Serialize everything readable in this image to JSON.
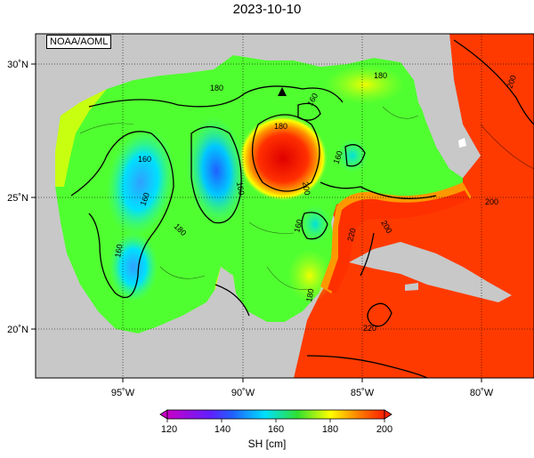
{
  "title": "2023-10-10",
  "agency": "NOAA/AOML",
  "colorbar": {
    "ticks": [
      "120",
      "140",
      "160",
      "180",
      "200"
    ],
    "unit_label": "SH [cm]",
    "range": [
      120,
      200
    ],
    "colors": [
      "#c800c8",
      "#3030ff",
      "#00ffff",
      "#30e030",
      "#ffff00",
      "#ff8000",
      "#ff2000"
    ]
  },
  "axes": {
    "x_ticks": [
      "95˚W",
      "90˚W",
      "85˚W",
      "80˚W"
    ],
    "y_ticks": [
      "30˚N",
      "25˚N",
      "20˚N"
    ],
    "lon_range": [
      -98,
      -78
    ],
    "lat_range": [
      18,
      31
    ]
  },
  "contour_labels": [
    "180",
    "160",
    "160",
    "160",
    "180",
    "160",
    "180",
    "200",
    "160",
    "160",
    "200",
    "220",
    "220",
    "200",
    "160",
    "180",
    "200",
    "180"
  ],
  "marker": "triangle-marker",
  "land_color": "#c8c8c8"
}
